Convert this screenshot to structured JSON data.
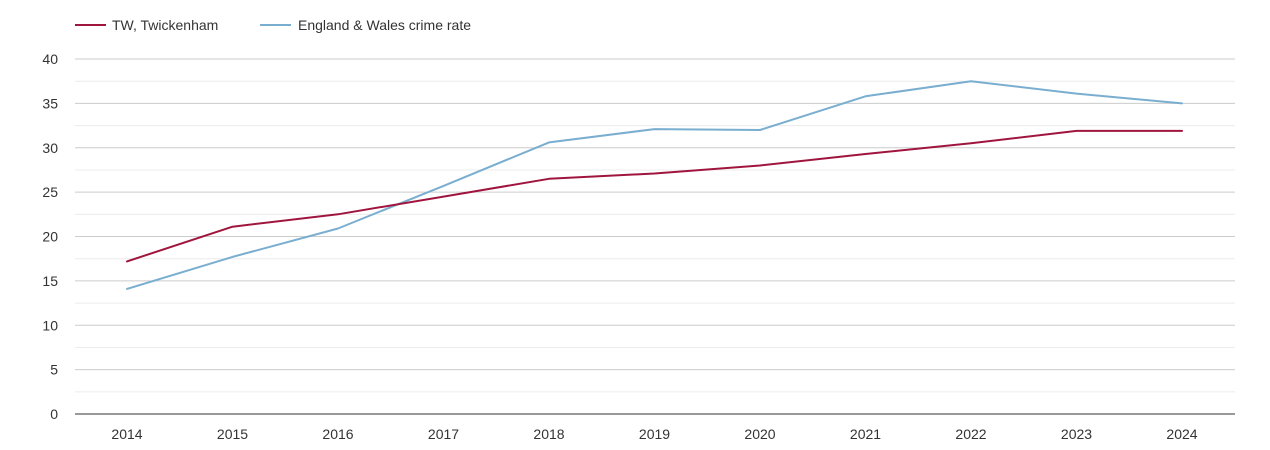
{
  "chart_data": {
    "type": "line",
    "title": "",
    "xlabel": "",
    "ylabel": "",
    "x": [
      "2014",
      "2015",
      "2016",
      "2017",
      "2018",
      "2019",
      "2020",
      "2021",
      "2022",
      "2023",
      "2024"
    ],
    "ylim": [
      0,
      40
    ],
    "yticks": [
      "0",
      "5",
      "10",
      "15",
      "20",
      "25",
      "30",
      "35",
      "40"
    ],
    "grid": true,
    "legend_position": "top-left",
    "series": [
      {
        "name": "TW, Twickenham",
        "color": "#a0153e",
        "values": [
          17.2,
          21.1,
          22.5,
          24.5,
          26.5,
          27.1,
          28.0,
          29.3,
          30.5,
          31.9,
          31.9
        ]
      },
      {
        "name": "England & Wales crime rate",
        "color": "#7aaed0",
        "values": [
          14.1,
          17.7,
          20.9,
          25.7,
          30.6,
          32.1,
          32.0,
          35.8,
          37.5,
          36.1,
          35.0
        ]
      }
    ]
  }
}
